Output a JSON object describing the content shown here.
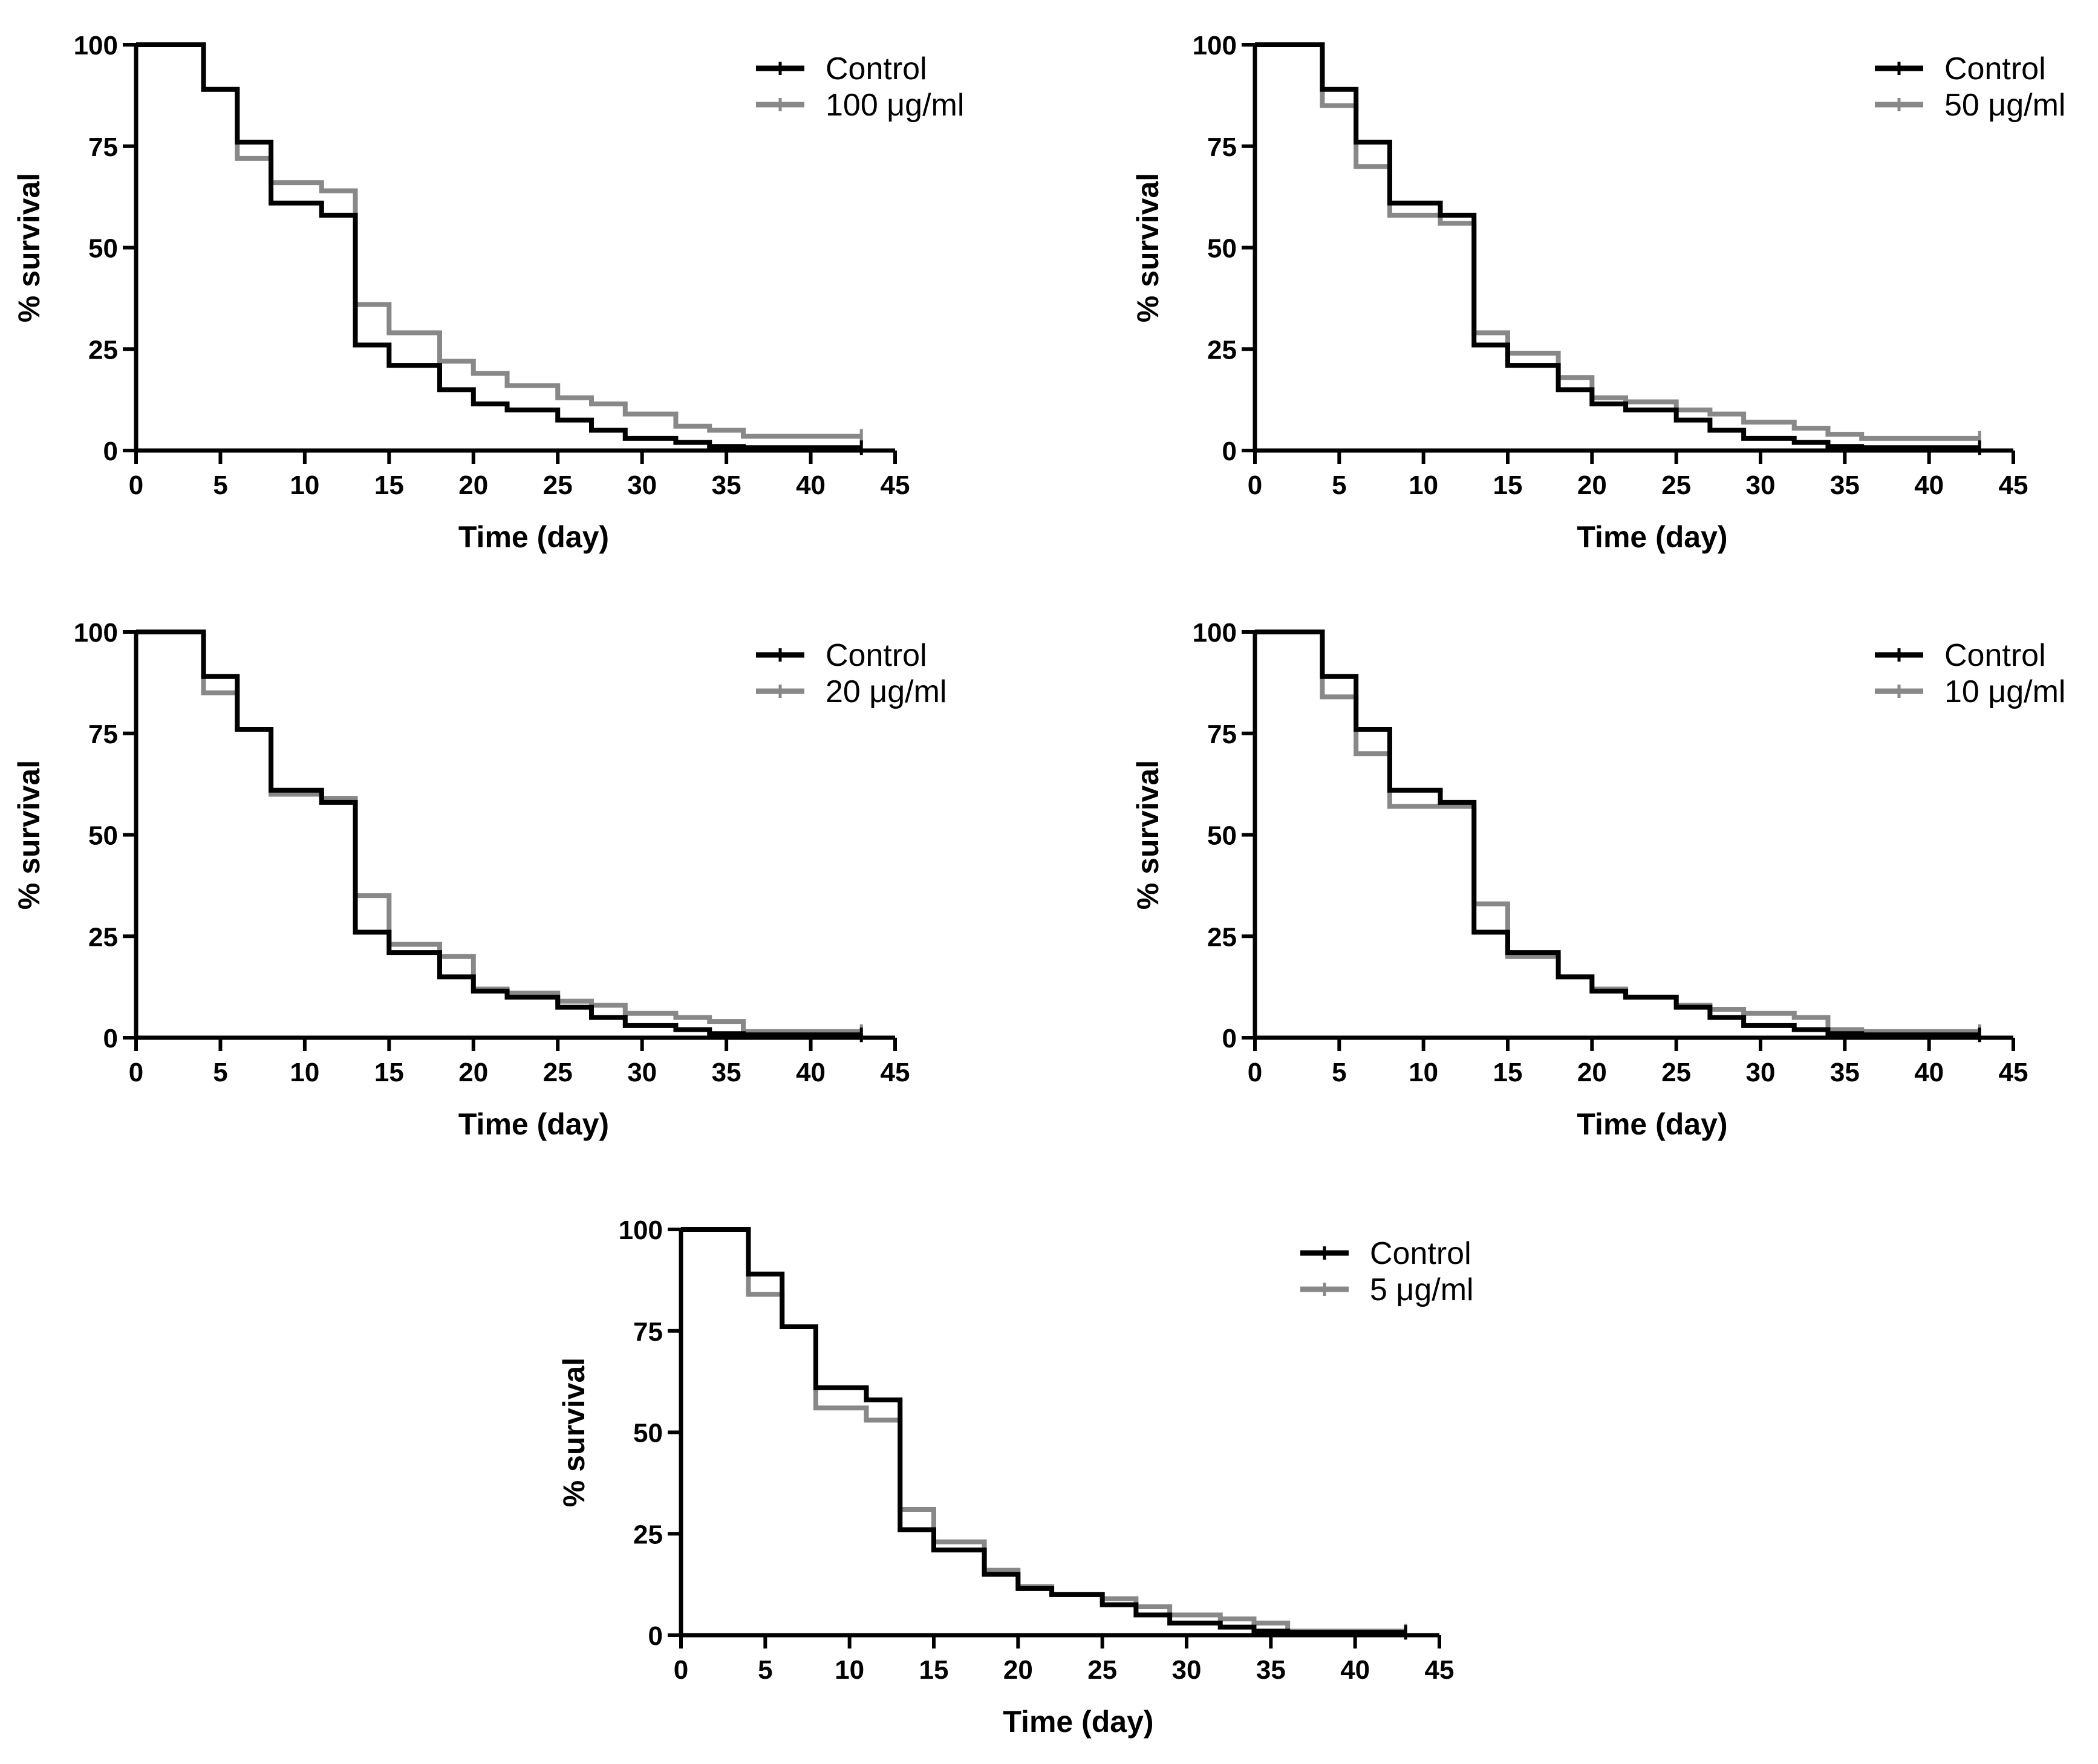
{
  "chart_data": [
    {
      "type": "line",
      "xlabel": "Time (day)",
      "ylabel": "% survival",
      "xlim": [
        0,
        45
      ],
      "ylim": [
        0,
        100
      ],
      "xticks": [
        0,
        5,
        10,
        15,
        20,
        25,
        30,
        35,
        40,
        45
      ],
      "yticks": [
        0,
        25,
        50,
        75,
        100
      ],
      "legend_position": "top-right",
      "series": [
        {
          "name": "Control",
          "color": "#000000",
          "x": [
            0,
            4,
            6,
            8,
            11,
            13,
            15,
            18,
            20,
            22,
            25,
            27,
            29,
            32,
            34,
            36,
            43
          ],
          "y": [
            100,
            89,
            76,
            61,
            58,
            26,
            21,
            15,
            11.5,
            10,
            7.5,
            5,
            3,
            2,
            1,
            0.7,
            0.7
          ]
        },
        {
          "name": "100 μg/ml",
          "color": "#888888",
          "x": [
            0,
            4,
            6,
            8,
            11,
            13,
            15,
            18,
            20,
            22,
            25,
            27,
            29,
            32,
            34,
            36,
            43
          ],
          "y": [
            100,
            89,
            72,
            66,
            64,
            36,
            29,
            22,
            19,
            16,
            13,
            11.5,
            9,
            6,
            5,
            3.5,
            3.5
          ]
        }
      ]
    },
    {
      "type": "line",
      "xlabel": "Time (day)",
      "ylabel": "% survival",
      "xlim": [
        0,
        45
      ],
      "ylim": [
        0,
        100
      ],
      "xticks": [
        0,
        5,
        10,
        15,
        20,
        25,
        30,
        35,
        40,
        45
      ],
      "yticks": [
        0,
        25,
        50,
        75,
        100
      ],
      "legend_position": "top-right",
      "series": [
        {
          "name": "Control",
          "color": "#000000",
          "x": [
            0,
            4,
            6,
            8,
            11,
            13,
            15,
            18,
            20,
            22,
            25,
            27,
            29,
            32,
            34,
            36,
            43
          ],
          "y": [
            100,
            89,
            76,
            61,
            58,
            26,
            21,
            15,
            11.5,
            10,
            7.5,
            5,
            3,
            2,
            1,
            0.7,
            0.7
          ]
        },
        {
          "name": "50  μg/ml",
          "color": "#888888",
          "x": [
            0,
            4,
            6,
            8,
            11,
            13,
            15,
            18,
            20,
            22,
            25,
            27,
            29,
            32,
            34,
            36,
            43
          ],
          "y": [
            100,
            85,
            70,
            58,
            56,
            29,
            24,
            18,
            13,
            12,
            10,
            9,
            7,
            5.5,
            4,
            3,
            3
          ]
        }
      ]
    },
    {
      "type": "line",
      "xlabel": "Time (day)",
      "ylabel": "% survival",
      "xlim": [
        0,
        45
      ],
      "ylim": [
        0,
        100
      ],
      "xticks": [
        0,
        5,
        10,
        15,
        20,
        25,
        30,
        35,
        40,
        45
      ],
      "yticks": [
        0,
        25,
        50,
        75,
        100
      ],
      "legend_position": "top-right",
      "series": [
        {
          "name": "Control",
          "color": "#000000",
          "x": [
            0,
            4,
            6,
            8,
            11,
            13,
            15,
            18,
            20,
            22,
            25,
            27,
            29,
            32,
            34,
            36,
            43
          ],
          "y": [
            100,
            89,
            76,
            61,
            58,
            26,
            21,
            15,
            11.5,
            10,
            7.5,
            5,
            3,
            2,
            1,
            0.7,
            0.7
          ]
        },
        {
          "name": "20  μg/ml",
          "color": "#888888",
          "x": [
            0,
            4,
            6,
            8,
            11,
            13,
            15,
            18,
            20,
            22,
            25,
            27,
            29,
            32,
            34,
            36,
            43
          ],
          "y": [
            100,
            85,
            76,
            60,
            59,
            35,
            23,
            20,
            12,
            11,
            9,
            8,
            6,
            5,
            4,
            1.5,
            1.5
          ]
        }
      ]
    },
    {
      "type": "line",
      "xlabel": "Time (day)",
      "ylabel": "% survival",
      "xlim": [
        0,
        45
      ],
      "ylim": [
        0,
        100
      ],
      "xticks": [
        0,
        5,
        10,
        15,
        20,
        25,
        30,
        35,
        40,
        45
      ],
      "yticks": [
        0,
        25,
        50,
        75,
        100
      ],
      "legend_position": "top-right",
      "series": [
        {
          "name": "Control",
          "color": "#000000",
          "x": [
            0,
            4,
            6,
            8,
            11,
            13,
            15,
            18,
            20,
            22,
            25,
            27,
            29,
            32,
            34,
            36,
            43
          ],
          "y": [
            100,
            89,
            76,
            61,
            58,
            26,
            21,
            15,
            11.5,
            10,
            7.5,
            5,
            3,
            2,
            1,
            0.7,
            0.7
          ]
        },
        {
          "name": "10 μg/ml",
          "color": "#888888",
          "x": [
            0,
            4,
            6,
            8,
            11,
            13,
            15,
            18,
            20,
            22,
            25,
            27,
            29,
            32,
            34,
            36,
            43
          ],
          "y": [
            100,
            84,
            70,
            57,
            57,
            33,
            20,
            15,
            12,
            10,
            8,
            7,
            6,
            5,
            2,
            1.5,
            1.5
          ]
        }
      ]
    },
    {
      "type": "line",
      "xlabel": "Time (day)",
      "ylabel": "% survival",
      "xlim": [
        0,
        45
      ],
      "ylim": [
        0,
        100
      ],
      "xticks": [
        0,
        5,
        10,
        15,
        20,
        25,
        30,
        35,
        40,
        45
      ],
      "yticks": [
        0,
        25,
        50,
        75,
        100
      ],
      "legend_position": "top-right",
      "series": [
        {
          "name": "Control",
          "color": "#000000",
          "x": [
            0,
            4,
            6,
            8,
            11,
            13,
            15,
            18,
            20,
            22,
            25,
            27,
            29,
            32,
            34,
            36,
            43
          ],
          "y": [
            100,
            89,
            76,
            61,
            58,
            26,
            21,
            15,
            11.5,
            10,
            7.5,
            5,
            3,
            2,
            1,
            0.7,
            0.7
          ]
        },
        {
          "name": "5 μg/ml",
          "color": "#888888",
          "x": [
            0,
            4,
            6,
            8,
            11,
            13,
            15,
            18,
            20,
            22,
            25,
            27,
            29,
            32,
            34,
            36,
            43
          ],
          "y": [
            100,
            84,
            76,
            56,
            53,
            31,
            23,
            16,
            12,
            10,
            9,
            7,
            5,
            4,
            3,
            1,
            1
          ]
        }
      ]
    }
  ]
}
